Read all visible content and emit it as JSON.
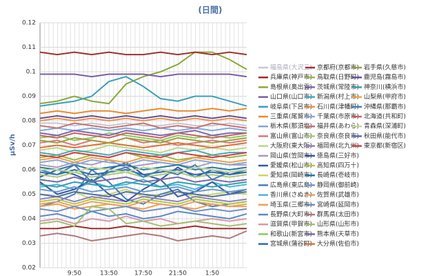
{
  "chart_data": {
    "type": "line",
    "title": "(日間)",
    "y_label": "μSv/h",
    "categories": [
      null,
      null,
      "9:50",
      null,
      "13:50",
      null,
      "17:50",
      null,
      "21:50",
      null,
      "1:50",
      null,
      null
    ],
    "ylim": [
      0.02,
      0.12
    ],
    "yticks": [
      0.02,
      0.03,
      0.04,
      0.05,
      0.06,
      0.07,
      0.08,
      0.09,
      0.1,
      0.11,
      0.12
    ],
    "grid": true,
    "series": [
      {
        "name": "福島県(大沢三)",
        "color": "#c0c8d8",
        "values": [
          0.079,
          0.079,
          0.078,
          0.079,
          0.078,
          0.079,
          0.078,
          0.078,
          0.079,
          0.078,
          0.078,
          0.079,
          0.078
        ]
      },
      {
        "name": "兵庫県(神戸市)",
        "color": "#9e2b2b",
        "values": [
          0.036,
          0.036,
          0.037,
          0.036,
          0.036,
          0.037,
          0.036,
          0.036,
          0.036,
          0.037,
          0.036,
          0.036,
          0.036
        ]
      },
      {
        "name": "島根県(奥出雲)",
        "color": "#8aa838",
        "values": [
          0.087,
          0.088,
          0.09,
          0.088,
          0.087,
          0.095,
          0.098,
          0.1,
          0.103,
          0.108,
          0.108,
          0.105,
          0.101
        ]
      },
      {
        "name": "山口県(山口市)",
        "color": "#7a5ca8",
        "values": [
          0.099,
          0.099,
          0.099,
          0.098,
          0.099,
          0.099,
          0.099,
          0.098,
          0.099,
          0.099,
          0.099,
          0.099,
          0.098
        ]
      },
      {
        "name": "岐阜県(下呂市)",
        "color": "#3aa0b8",
        "values": [
          0.086,
          0.087,
          0.088,
          0.09,
          0.096,
          0.098,
          0.094,
          0.089,
          0.088,
          0.09,
          0.09,
          0.088,
          0.086
        ]
      },
      {
        "name": "三重県(尾鷲市)",
        "color": "#e88a2c",
        "values": [
          0.083,
          0.084,
          0.083,
          0.084,
          0.084,
          0.083,
          0.084,
          0.085,
          0.084,
          0.084,
          0.085,
          0.084,
          0.085
        ]
      },
      {
        "name": "栃木県(那須塩)",
        "color": "#7fa8d8",
        "values": [
          0.076,
          0.077,
          0.076,
          0.077,
          0.076,
          0.077,
          0.076,
          0.077,
          0.076,
          0.077,
          0.076,
          0.077,
          0.076
        ]
      },
      {
        "name": "富山県(富山市)",
        "color": "#d87878",
        "values": [
          0.071,
          0.072,
          0.07,
          0.072,
          0.071,
          0.073,
          0.071,
          0.072,
          0.07,
          0.071,
          0.072,
          0.071,
          0.072
        ]
      },
      {
        "name": "大阪府(東大阪)",
        "color": "#b8d888",
        "values": [
          0.068,
          0.069,
          0.067,
          0.068,
          0.07,
          0.069,
          0.068,
          0.067,
          0.069,
          0.068,
          0.069,
          0.068,
          0.069
        ]
      },
      {
        "name": "岡山県(笠岡市)",
        "color": "#a898c8",
        "values": [
          0.062,
          0.061,
          0.063,
          0.062,
          0.064,
          0.061,
          0.062,
          0.063,
          0.062,
          0.061,
          0.063,
          0.062,
          0.062
        ]
      },
      {
        "name": "愛媛県(松山市)",
        "color": "#2c5aa0",
        "values": [
          0.057,
          0.06,
          0.058,
          0.055,
          0.06,
          0.063,
          0.058,
          0.056,
          0.061,
          0.057,
          0.06,
          0.058,
          0.059
        ]
      },
      {
        "name": "愛知県(岡崎市)",
        "color": "#c8d860",
        "values": [
          0.05,
          0.049,
          0.051,
          0.048,
          0.05,
          0.052,
          0.049,
          0.05,
          0.051,
          0.049,
          0.05,
          0.051,
          0.05
        ]
      },
      {
        "name": "広島県(東広島)",
        "color": "#4a7cc0",
        "values": [
          0.045,
          0.047,
          0.05,
          0.06,
          0.055,
          0.048,
          0.046,
          0.05,
          0.052,
          0.047,
          0.045,
          0.046,
          0.047
        ]
      },
      {
        "name": "香川県(さぬき)",
        "color": "#48b8d8",
        "values": [
          0.053,
          0.054,
          0.052,
          0.055,
          0.053,
          0.054,
          0.056,
          0.053,
          0.054,
          0.052,
          0.055,
          0.053,
          0.054
        ]
      },
      {
        "name": "埼玉県(三郷市)",
        "color": "#f0a050",
        "values": [
          0.045,
          0.046,
          0.044,
          0.045,
          0.046,
          0.045,
          0.044,
          0.046,
          0.045,
          0.044,
          0.046,
          0.045,
          0.045
        ]
      },
      {
        "name": "長野県(大町市)",
        "color": "#5a88c8",
        "values": [
          0.041,
          0.042,
          0.04,
          0.043,
          0.041,
          0.042,
          0.04,
          0.041,
          0.043,
          0.042,
          0.041,
          0.04,
          0.042
        ]
      },
      {
        "name": "滋賀県(甲賀市)",
        "color": "#d898a8",
        "values": [
          0.039,
          0.04,
          0.038,
          0.04,
          0.039,
          0.041,
          0.039,
          0.04,
          0.038,
          0.039,
          0.04,
          0.039,
          0.04
        ]
      },
      {
        "name": "和歌山(新宮市)",
        "color": "#8cc860",
        "values": [
          0.073,
          0.074,
          0.072,
          0.073,
          0.075,
          0.074,
          0.073,
          0.072,
          0.074,
          0.073,
          0.074,
          0.073,
          0.074
        ]
      },
      {
        "name": "宮城県(蒲谷町)",
        "color": "#3068b0",
        "values": [
          0.059,
          0.058,
          0.06,
          0.058,
          0.059,
          0.06,
          0.058,
          0.059,
          0.06,
          0.058,
          0.059,
          0.058,
          0.06
        ]
      },
      {
        "name": "京都府(京都市)",
        "color": "#a03030",
        "values": [
          0.108,
          0.107,
          0.108,
          0.107,
          0.108,
          0.107,
          0.107,
          0.108,
          0.107,
          0.108,
          0.107,
          0.108,
          0.107
        ]
      },
      {
        "name": "鳥取県(日野町)",
        "color": "#98b848",
        "values": [
          0.065,
          0.066,
          0.064,
          0.066,
          0.065,
          0.067,
          0.065,
          0.066,
          0.064,
          0.065,
          0.066,
          0.065,
          0.066
        ]
      },
      {
        "name": "茨城県(常陸市)",
        "color": "#8068b0",
        "values": [
          0.075,
          0.074,
          0.076,
          0.075,
          0.074,
          0.076,
          0.075,
          0.074,
          0.075,
          0.076,
          0.074,
          0.075,
          0.075
        ]
      },
      {
        "name": "新潟県(村上市)",
        "color": "#40a8c0",
        "values": [
          0.067,
          0.066,
          0.068,
          0.067,
          0.066,
          0.068,
          0.067,
          0.066,
          0.067,
          0.068,
          0.066,
          0.067,
          0.067
        ]
      },
      {
        "name": "石川県(津幡町)",
        "color": "#f09040",
        "values": [
          0.08,
          0.081,
          0.08,
          0.081,
          0.08,
          0.081,
          0.08,
          0.081,
          0.08,
          0.081,
          0.08,
          0.081,
          0.08
        ]
      },
      {
        "name": "千葉県(市原市)",
        "color": "#88a8d8",
        "values": [
          0.063,
          0.064,
          0.062,
          0.064,
          0.063,
          0.062,
          0.064,
          0.063,
          0.062,
          0.064,
          0.063,
          0.062,
          0.063
        ]
      },
      {
        "name": "福井県(あわら)",
        "color": "#c87070",
        "values": [
          0.078,
          0.077,
          0.079,
          0.078,
          0.077,
          0.078,
          0.079,
          0.077,
          0.078,
          0.077,
          0.079,
          0.078,
          0.077
        ]
      },
      {
        "name": "奈良県(奈良市)",
        "color": "#a8c878",
        "values": [
          0.058,
          0.057,
          0.059,
          0.057,
          0.058,
          0.059,
          0.057,
          0.058,
          0.059,
          0.057,
          0.058,
          0.057,
          0.058
        ]
      },
      {
        "name": "福岡県(北九州)",
        "color": "#9080b8",
        "values": [
          0.048,
          0.049,
          0.047,
          0.049,
          0.048,
          0.047,
          0.049,
          0.048,
          0.047,
          0.049,
          0.048,
          0.047,
          0.048
        ]
      },
      {
        "name": "徳島県(三好市)",
        "color": "#3858a0",
        "values": [
          0.055,
          0.05,
          0.052,
          0.056,
          0.05,
          0.047,
          0.052,
          0.056,
          0.049,
          0.051,
          0.055,
          0.05,
          0.052
        ]
      },
      {
        "name": "高知県(四万十)",
        "color": "#b0c840",
        "values": [
          0.047,
          0.048,
          0.046,
          0.048,
          0.047,
          0.046,
          0.048,
          0.047,
          0.046,
          0.048,
          0.047,
          0.046,
          0.047
        ]
      },
      {
        "name": "長崎県(壱岐市)",
        "color": "#2878a8",
        "values": [
          0.061,
          0.06,
          0.062,
          0.06,
          0.061,
          0.062,
          0.06,
          0.061,
          0.062,
          0.06,
          0.061,
          0.06,
          0.061
        ]
      },
      {
        "name": "静岡県(御前崎)",
        "color": "#6898d0",
        "values": [
          0.052,
          0.051,
          0.053,
          0.051,
          0.052,
          0.053,
          0.051,
          0.052,
          0.053,
          0.051,
          0.052,
          0.051,
          0.052
        ]
      },
      {
        "name": "佐賀県(武雄市)",
        "color": "#e8a060",
        "values": [
          0.046,
          0.047,
          0.045,
          0.047,
          0.046,
          0.045,
          0.047,
          0.046,
          0.045,
          0.047,
          0.046,
          0.045,
          0.046
        ]
      },
      {
        "name": "宮崎県(延岡市)",
        "color": "#7090c0",
        "values": [
          0.044,
          0.043,
          0.045,
          0.043,
          0.044,
          0.045,
          0.043,
          0.044,
          0.045,
          0.043,
          0.044,
          0.043,
          0.044
        ]
      },
      {
        "name": "群馬県(太田市)",
        "color": "#b07878",
        "values": [
          0.033,
          0.034,
          0.033,
          0.031,
          0.032,
          0.033,
          0.034,
          0.033,
          0.031,
          0.032,
          0.033,
          0.032,
          0.035
        ]
      },
      {
        "name": "山形県(山形市)",
        "color": "#a0c070",
        "values": [
          0.038,
          0.039,
          0.037,
          0.045,
          0.044,
          0.038,
          0.039,
          0.037,
          0.038,
          0.039,
          0.038,
          0.037,
          0.038
        ]
      },
      {
        "name": "熊本県(天草市)",
        "color": "#7868a8",
        "values": [
          0.056,
          0.055,
          0.057,
          0.055,
          0.056,
          0.057,
          0.055,
          0.056,
          0.057,
          0.055,
          0.056,
          0.055,
          0.056
        ]
      },
      {
        "name": "大分県(佐伯市)",
        "color": "#e07030",
        "values": [
          0.069,
          0.07,
          0.069,
          0.07,
          0.071,
          0.07,
          0.069,
          0.07,
          0.071,
          0.07,
          0.069,
          0.07,
          0.071
        ]
      },
      {
        "name": "岩手県(久慈市)",
        "color": "#98a040",
        "values": [
          0.072,
          0.071,
          0.073,
          0.072,
          0.071,
          0.073,
          0.072,
          0.071,
          0.073,
          0.072,
          0.071,
          0.072,
          0.073
        ]
      },
      {
        "name": "鹿児島(霧島市)",
        "color": "#6050a0",
        "values": [
          0.081,
          0.082,
          0.081,
          0.082,
          0.081,
          0.082,
          0.081,
          0.082,
          0.081,
          0.082,
          0.081,
          0.082,
          0.081
        ]
      },
      {
        "name": "神奈川(横浜市)",
        "color": "#30a0b0",
        "values": [
          0.054,
          0.053,
          0.055,
          0.054,
          0.053,
          0.055,
          0.054,
          0.053,
          0.055,
          0.054,
          0.053,
          0.054,
          0.055
        ]
      },
      {
        "name": "山梨県(甲府市)",
        "color": "#f0a040",
        "values": [
          0.064,
          0.065,
          0.063,
          0.065,
          0.064,
          0.063,
          0.065,
          0.064,
          0.063,
          0.065,
          0.064,
          0.063,
          0.064
        ]
      },
      {
        "name": "沖縄県(那覇市)",
        "color": "#4080b0",
        "values": [
          0.06,
          0.058,
          0.062,
          0.055,
          0.059,
          0.061,
          0.057,
          0.06,
          0.058,
          0.062,
          0.056,
          0.059,
          0.06
        ]
      },
      {
        "name": "北海道(共和町)",
        "color": "#c86060",
        "values": [
          0.074,
          0.073,
          0.075,
          0.074,
          0.073,
          0.075,
          0.074,
          0.073,
          0.075,
          0.074,
          0.073,
          0.074,
          0.075
        ]
      },
      {
        "name": "青森県(深浦町)",
        "color": "#c0d890",
        "values": [
          0.06,
          0.06,
          0.059,
          0.061,
          0.06,
          0.059,
          0.061,
          0.06,
          0.059,
          0.061,
          0.06,
          0.059,
          0.06
        ]
      },
      {
        "name": "秋田県(能代市)",
        "color": "#5070a8",
        "values": [
          0.05,
          0.049,
          0.051,
          0.05,
          0.049,
          0.051,
          0.05,
          0.049,
          0.051,
          0.05,
          0.049,
          0.05,
          0.051
        ]
      },
      {
        "name": "東京都(新宿区)",
        "color": "#d04040",
        "values": [
          0.066,
          0.065,
          0.067,
          0.066,
          0.065,
          0.067,
          0.066,
          0.065,
          0.067,
          0.066,
          0.065,
          0.066,
          0.067
        ]
      }
    ]
  }
}
